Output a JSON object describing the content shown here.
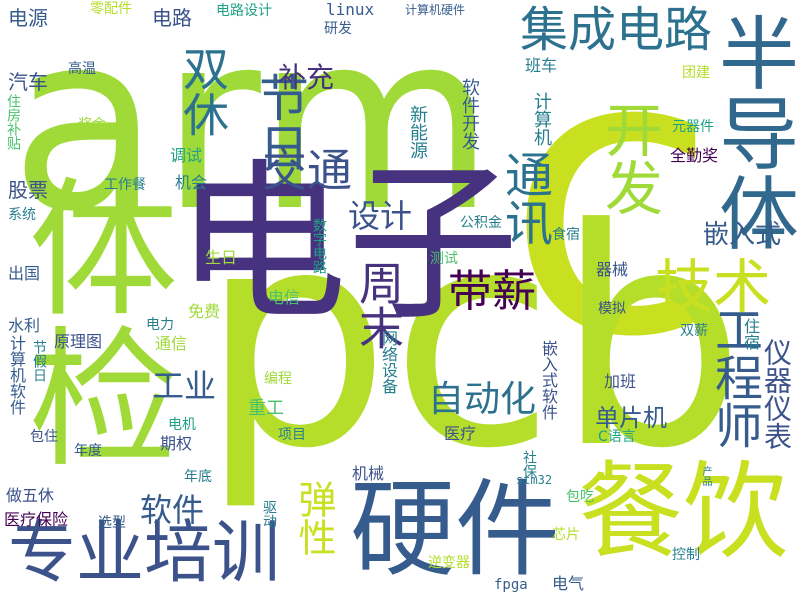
{
  "colors": {
    "background": "#ffffff",
    "palette": [
      "#440154",
      "#46327e",
      "#365c8d",
      "#277f8e",
      "#1fa187",
      "#4ac16d",
      "#a0da39",
      "#c8e020"
    ]
  },
  "words": [
    {
      "text": "arm",
      "color": "#a0da39"
    },
    {
      "text": "c",
      "color": "#c8e020"
    },
    {
      "text": "pcb",
      "color": "#b5de2b"
    },
    {
      "text": "电子",
      "color": "#46327e"
    },
    {
      "text": "体检",
      "color": "#a0da39"
    },
    {
      "text": "硬件",
      "color": "#365c8d"
    },
    {
      "text": "餐饮",
      "color": "#c8e020"
    },
    {
      "text": "专业培训",
      "color": "#3b528b"
    },
    {
      "text": "半导体",
      "color": "#31688e"
    },
    {
      "text": "集成电路",
      "color": "#2c728e"
    },
    {
      "text": "双休",
      "color": "#2c728e"
    },
    {
      "text": "节日",
      "color": "#365c8d"
    },
    {
      "text": "开发",
      "color": "#a0da39"
    },
    {
      "text": "交通",
      "color": "#3b528b"
    },
    {
      "text": "技术",
      "color": "#c8e020"
    },
    {
      "text": "带薪",
      "color": "#440154"
    },
    {
      "text": "工程师",
      "color": "#365c8d"
    },
    {
      "text": "通讯",
      "color": "#2c728e"
    },
    {
      "text": "周末",
      "color": "#46327e"
    },
    {
      "text": "弹性",
      "color": "#c8e020"
    },
    {
      "text": "补充",
      "color": "#46327e"
    },
    {
      "text": "设计",
      "color": "#3b528b"
    },
    {
      "text": "自动化",
      "color": "#2c728e"
    },
    {
      "text": "仪器仪表",
      "color": "#3b528b"
    },
    {
      "text": "工业",
      "color": "#365c8d"
    },
    {
      "text": "软件",
      "color": "#365c8d"
    },
    {
      "text": "嵌入式",
      "color": "#365c8d"
    },
    {
      "text": "单片机",
      "color": "#365c8d"
    },
    {
      "text": "股票",
      "color": "#3b528b"
    },
    {
      "text": "电源",
      "color": "#365c8d"
    },
    {
      "text": "电路",
      "color": "#3b528b"
    },
    {
      "text": "汽车",
      "color": "#3b528b"
    },
    {
      "text": "电路设计",
      "color": "#1fa187"
    },
    {
      "text": "linux",
      "color": "#365c8d"
    },
    {
      "text": "研发",
      "color": "#365c8d"
    },
    {
      "text": "计算机硬件",
      "color": "#365c8d"
    },
    {
      "text": "零配件",
      "color": "#b5de2b"
    },
    {
      "text": "高温",
      "color": "#365c8d"
    },
    {
      "text": "班车",
      "color": "#277f8e"
    },
    {
      "text": "计算机",
      "color": "#277f8e"
    },
    {
      "text": "新能源",
      "color": "#277f8e"
    },
    {
      "text": "软件开发",
      "color": "#365c8d"
    },
    {
      "text": "住房补贴",
      "color": "#4ac16d"
    },
    {
      "text": "奖金",
      "color": "#a0da39"
    },
    {
      "text": "调试",
      "color": "#1fa187"
    },
    {
      "text": "元器件",
      "color": "#1fa187"
    },
    {
      "text": "团建",
      "color": "#b5de2b"
    },
    {
      "text": "全勤奖",
      "color": "#440154"
    },
    {
      "text": "工作餐",
      "color": "#277f8e"
    },
    {
      "text": "机会",
      "color": "#277f8e"
    },
    {
      "text": "系统",
      "color": "#277f8e"
    },
    {
      "text": "公积金",
      "color": "#277f8e"
    },
    {
      "text": "数字电路",
      "color": "#1fa187"
    },
    {
      "text": "食宿",
      "color": "#277f8e"
    },
    {
      "text": "生日",
      "color": "#a0da39"
    },
    {
      "text": "测试",
      "color": "#4ac16d"
    },
    {
      "text": "器械",
      "color": "#3b528b"
    },
    {
      "text": "出国",
      "color": "#365c8d"
    },
    {
      "text": "电信",
      "color": "#4ac16d"
    },
    {
      "text": "模拟",
      "color": "#3b528b"
    },
    {
      "text": "免费",
      "color": "#a0da39"
    },
    {
      "text": "水利",
      "color": "#365c8d"
    },
    {
      "text": "电力",
      "color": "#277f8e"
    },
    {
      "text": "计算机软件",
      "color": "#365c8d"
    },
    {
      "text": "节假日",
      "color": "#277f8e"
    },
    {
      "text": "原理图",
      "color": "#3b528b"
    },
    {
      "text": "通信",
      "color": "#a0da39"
    },
    {
      "text": "网络设备",
      "color": "#277f8e"
    },
    {
      "text": "嵌入式软件",
      "color": "#3b528b"
    },
    {
      "text": "双薪",
      "color": "#277f8e"
    },
    {
      "text": "住宿",
      "color": "#277f8e"
    },
    {
      "text": "编程",
      "color": "#a0da39"
    },
    {
      "text": "加班",
      "color": "#3b528b"
    },
    {
      "text": "重工",
      "color": "#4ac16d"
    },
    {
      "text": "医疗",
      "color": "#3b528b"
    },
    {
      "text": "期权",
      "color": "#3b528b"
    },
    {
      "text": "电机",
      "color": "#1fa187"
    },
    {
      "text": "项目",
      "color": "#277f8e"
    },
    {
      "text": "C语言",
      "color": "#1fa187"
    },
    {
      "text": "包住",
      "color": "#3b528b"
    },
    {
      "text": "年度",
      "color": "#365c8d"
    },
    {
      "text": "年底",
      "color": "#277f8e"
    },
    {
      "text": "机械",
      "color": "#3b528b"
    },
    {
      "text": "社保",
      "color": "#277f8e"
    },
    {
      "text": "产品",
      "color": "#277f8e"
    },
    {
      "text": "stm32",
      "color": "#277f8e"
    },
    {
      "text": "做五休",
      "color": "#3b528b"
    },
    {
      "text": "医疗保险",
      "color": "#440154"
    },
    {
      "text": "选型",
      "color": "#365c8d"
    },
    {
      "text": "驱动",
      "color": "#277f8e"
    },
    {
      "text": "包吃",
      "color": "#4ac16d"
    },
    {
      "text": "芯片",
      "color": "#b5de2b"
    },
    {
      "text": "控制",
      "color": "#277f8e"
    },
    {
      "text": "逆变器",
      "color": "#b5de2b"
    },
    {
      "text": "fpga",
      "color": "#365c8d"
    },
    {
      "text": "电气",
      "color": "#365c8d"
    }
  ]
}
